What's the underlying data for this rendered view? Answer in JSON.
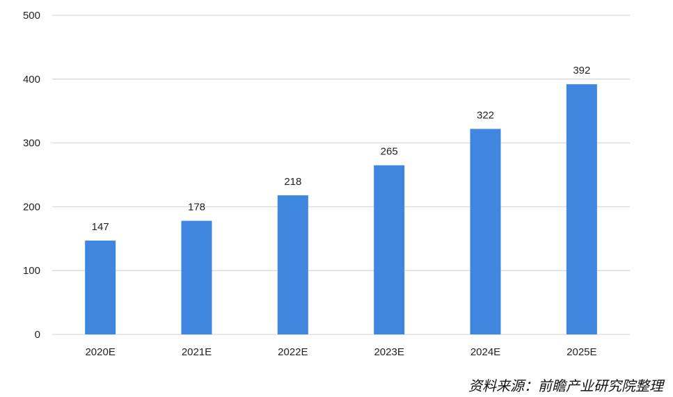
{
  "chart_data": {
    "type": "bar",
    "categories": [
      "2020E",
      "2021E",
      "2022E",
      "2023E",
      "2024E",
      "2025E"
    ],
    "values": [
      147,
      178,
      218,
      265,
      322,
      392
    ],
    "data_labels": [
      "147",
      "178",
      "218",
      "265",
      "322",
      "392"
    ],
    "title": "",
    "xlabel": "",
    "ylabel": "",
    "ylim": [
      0,
      500
    ],
    "yticks": [
      "0",
      "100",
      "200",
      "300",
      "400",
      "500"
    ],
    "grid": true,
    "bar_color": "#3f86e1",
    "grid_color": "#d9d9d9"
  },
  "source": "资料来源：前瞻产业研究院整理"
}
